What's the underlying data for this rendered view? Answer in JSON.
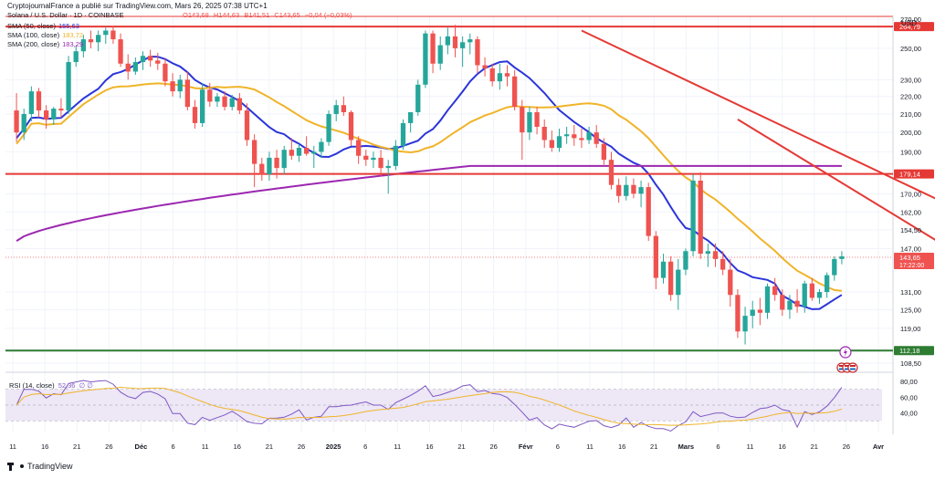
{
  "header": {
    "published": "CryptojournalFrance a publié sur TradingView.com, Mars 26, 2025 07:38 UTC+1",
    "symbol": "Solana / U.S. Dollar · 1D · COINBASE",
    "ohlc": {
      "o": "O143,68",
      "h": "H144,63",
      "l": "B141,51",
      "c": "C143,65",
      "chg": "−0,04 (−0,03%)"
    }
  },
  "legend": [
    {
      "label": "SMA (50, close)",
      "value": "155,63",
      "color": "#2b35d9"
    },
    {
      "label": "SMA (100, close)",
      "value": "183,72",
      "color": "#f0b429"
    },
    {
      "label": "SMA (200, close)",
      "value": "183,29",
      "color": "#9c27b0"
    }
  ],
  "currency": "USD",
  "rsi_legend": {
    "label": "RSI (14, close)",
    "value": "52,36",
    "extra": "∅ ∅",
    "color": "#7e57c2"
  },
  "footer": {
    "brand": "TradingView"
  },
  "colors": {
    "up": "#26a69a",
    "down": "#ef5350",
    "sma50": "#2b35d9",
    "sma100": "#f0b429",
    "sma200": "#9c27b0",
    "level": "#e53935",
    "support": "#2e7d32",
    "rsi": "#7e57c2",
    "rsiband": "#ede7f6"
  },
  "chart_data": {
    "type": "candlestick",
    "x_tick_labels": [
      "11",
      "16",
      "21",
      "26",
      "Déc",
      "6",
      "11",
      "16",
      "21",
      "26",
      "2025",
      "6",
      "11",
      "16",
      "21",
      "26",
      "Févr",
      "6",
      "11",
      "16",
      "21",
      "Mars",
      "6",
      "11",
      "16",
      "21",
      "26",
      "Avr"
    ],
    "y_tick_labels": [
      "270,00",
      "250,00",
      "230,00",
      "220,00",
      "210,00",
      "200,00",
      "190,00",
      "170,00",
      "162,00",
      "154,50",
      "147,00",
      "131,00",
      "125,00",
      "119,00",
      "112,50",
      "108,50"
    ],
    "ylim": [
      108.5,
      272
    ],
    "y_scale": "log",
    "price_labels": [
      {
        "value": "264,79",
        "price": 264.79,
        "color": "#e53935"
      },
      {
        "value": "179,14",
        "price": 179.14,
        "color": "#e53935"
      },
      {
        "value": "112,18",
        "price": 112.18,
        "color": "#2e7d32"
      },
      {
        "value": "143,65",
        "price": 143.65,
        "color": "#ef5350",
        "sub": "17:22:00"
      }
    ],
    "horizontal_levels": [
      {
        "price": 264.79,
        "color": "#e53935"
      },
      {
        "price": 179.14,
        "color": "#e53935"
      },
      {
        "price": 112.18,
        "color": "#2e7d32"
      }
    ],
    "trendlines": [
      {
        "from": {
          "bar": 76,
          "price": 262
        },
        "to": {
          "bar": 143,
          "price": 140
        },
        "color": "#e53935"
      },
      {
        "from": {
          "bar": 97,
          "price": 207
        },
        "to": {
          "bar": 139,
          "price": 125
        },
        "color": "#e53935"
      }
    ],
    "candles": [
      [
        212,
        222,
        195,
        200
      ],
      [
        200,
        213,
        196,
        210
      ],
      [
        210,
        226,
        206,
        223
      ],
      [
        223,
        225,
        208,
        212
      ],
      [
        212,
        215,
        202,
        207
      ],
      [
        207,
        214,
        204,
        213
      ],
      [
        213,
        219,
        208,
        212
      ],
      [
        212,
        245,
        210,
        241
      ],
      [
        241,
        252,
        238,
        248
      ],
      [
        248,
        259,
        244,
        256
      ],
      [
        256,
        262,
        250,
        254
      ],
      [
        254,
        262,
        248,
        259
      ],
      [
        259,
        264,
        253,
        262
      ],
      [
        262,
        265,
        253,
        256
      ],
      [
        256,
        260,
        238,
        240
      ],
      [
        240,
        246,
        230,
        235
      ],
      [
        235,
        244,
        233,
        241
      ],
      [
        241,
        248,
        236,
        245
      ],
      [
        245,
        249,
        238,
        242
      ],
      [
        242,
        247,
        236,
        240
      ],
      [
        240,
        243,
        226,
        229
      ],
      [
        229,
        234,
        220,
        223
      ],
      [
        223,
        233,
        219,
        230
      ],
      [
        230,
        235,
        212,
        214
      ],
      [
        214,
        218,
        202,
        205
      ],
      [
        205,
        228,
        203,
        224
      ],
      [
        224,
        228,
        214,
        217
      ],
      [
        217,
        222,
        214,
        220
      ],
      [
        220,
        223,
        212,
        214
      ],
      [
        214,
        221,
        212,
        219
      ],
      [
        219,
        222,
        210,
        212
      ],
      [
        212,
        216,
        193,
        196
      ],
      [
        196,
        199,
        173,
        184
      ],
      [
        184,
        187,
        176,
        179
      ],
      [
        179,
        190,
        176,
        187
      ],
      [
        187,
        191,
        177,
        182
      ],
      [
        182,
        193,
        179,
        191
      ],
      [
        191,
        197,
        186,
        188
      ],
      [
        188,
        194,
        185,
        192
      ],
      [
        192,
        198,
        188,
        189
      ],
      [
        189,
        193,
        182,
        190
      ],
      [
        190,
        197,
        187,
        195
      ],
      [
        195,
        212,
        193,
        210
      ],
      [
        210,
        218,
        206,
        215
      ],
      [
        215,
        220,
        209,
        211
      ],
      [
        211,
        212,
        193,
        196
      ],
      [
        196,
        198,
        184,
        188
      ],
      [
        188,
        191,
        183,
        186
      ],
      [
        186,
        190,
        182,
        187
      ],
      [
        187,
        191,
        178,
        182
      ],
      [
        182,
        186,
        170,
        183
      ],
      [
        183,
        196,
        181,
        193
      ],
      [
        193,
        207,
        191,
        205
      ],
      [
        205,
        211,
        200,
        211
      ],
      [
        211,
        230,
        209,
        227
      ],
      [
        227,
        262,
        225,
        260
      ],
      [
        260,
        262,
        234,
        240
      ],
      [
        240,
        258,
        236,
        252
      ],
      [
        252,
        264,
        246,
        258
      ],
      [
        258,
        266,
        244,
        250
      ],
      [
        250,
        258,
        238,
        254
      ],
      [
        254,
        260,
        246,
        256
      ],
      [
        256,
        258,
        234,
        239
      ],
      [
        239,
        244,
        232,
        237
      ],
      [
        237,
        240,
        226,
        229
      ],
      [
        229,
        240,
        224,
        234
      ],
      [
        234,
        239,
        226,
        232
      ],
      [
        232,
        236,
        212,
        214
      ],
      [
        214,
        218,
        186,
        200
      ],
      [
        200,
        214,
        196,
        211
      ],
      [
        211,
        214,
        199,
        203
      ],
      [
        203,
        207,
        192,
        196
      ],
      [
        196,
        201,
        190,
        192
      ],
      [
        192,
        202,
        190,
        198
      ],
      [
        198,
        203,
        194,
        199
      ],
      [
        199,
        204,
        193,
        197
      ],
      [
        197,
        202,
        192,
        196
      ],
      [
        196,
        203,
        194,
        200
      ],
      [
        200,
        204,
        192,
        194
      ],
      [
        194,
        197,
        183,
        186
      ],
      [
        186,
        190,
        172,
        174
      ],
      [
        174,
        177,
        166,
        169
      ],
      [
        169,
        178,
        167,
        174
      ],
      [
        174,
        177,
        168,
        170
      ],
      [
        170,
        176,
        164,
        173
      ],
      [
        173,
        175,
        150,
        152
      ],
      [
        152,
        154,
        132,
        136
      ],
      [
        136,
        145,
        134,
        142
      ],
      [
        142,
        144,
        128,
        130
      ],
      [
        130,
        143,
        125,
        139
      ],
      [
        139,
        147,
        137,
        146
      ],
      [
        146,
        179,
        144,
        176
      ],
      [
        176,
        180,
        143,
        145
      ],
      [
        145,
        149,
        140,
        146
      ],
      [
        146,
        149,
        140,
        143
      ],
      [
        143,
        146,
        137,
        139
      ],
      [
        139,
        143,
        126,
        130
      ],
      [
        130,
        132,
        116,
        118
      ],
      [
        118,
        126,
        114,
        123
      ],
      [
        123,
        128,
        119,
        125
      ],
      [
        125,
        129,
        120,
        124
      ],
      [
        124,
        134,
        122,
        133
      ],
      [
        133,
        136,
        128,
        130
      ],
      [
        130,
        132,
        123,
        125
      ],
      [
        125,
        130,
        122,
        128
      ],
      [
        128,
        132,
        124,
        126
      ],
      [
        126,
        135,
        124,
        134
      ],
      [
        134,
        136,
        128,
        129
      ],
      [
        129,
        132,
        127,
        131
      ],
      [
        131,
        138,
        129,
        137
      ],
      [
        137,
        144,
        135,
        143
      ],
      [
        143,
        146,
        141,
        144
      ]
    ]
  }
}
